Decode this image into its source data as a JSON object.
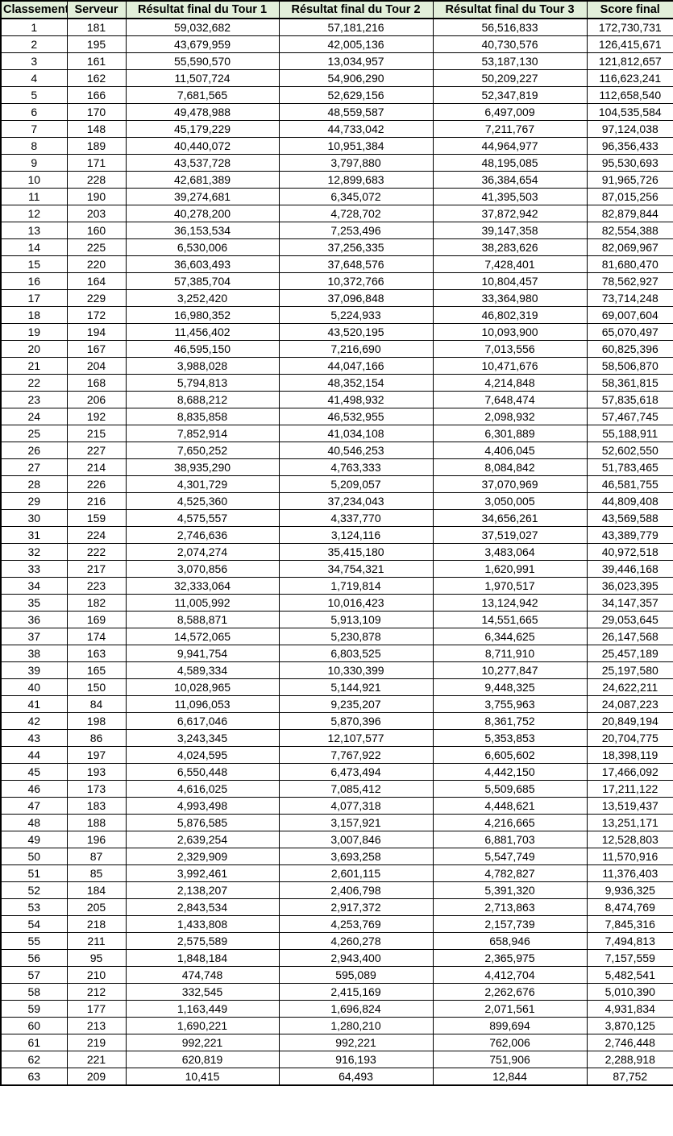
{
  "colors": {
    "header_bg": "#e2efda",
    "border": "#000000",
    "text": "#000000",
    "row_bg": "#ffffff"
  },
  "table": {
    "columns": [
      "Classement",
      "Serveur",
      "Résultat final du Tour 1",
      "Résultat final du Tour 2",
      "Résultat final du Tour 3",
      "Score final"
    ],
    "rows": [
      [
        "1",
        "181",
        "59,032,682",
        "57,181,216",
        "56,516,833",
        "172,730,731"
      ],
      [
        "2",
        "195",
        "43,679,959",
        "42,005,136",
        "40,730,576",
        "126,415,671"
      ],
      [
        "3",
        "161",
        "55,590,570",
        "13,034,957",
        "53,187,130",
        "121,812,657"
      ],
      [
        "4",
        "162",
        "11,507,724",
        "54,906,290",
        "50,209,227",
        "116,623,241"
      ],
      [
        "5",
        "166",
        "7,681,565",
        "52,629,156",
        "52,347,819",
        "112,658,540"
      ],
      [
        "6",
        "170",
        "49,478,988",
        "48,559,587",
        "6,497,009",
        "104,535,584"
      ],
      [
        "7",
        "148",
        "45,179,229",
        "44,733,042",
        "7,211,767",
        "97,124,038"
      ],
      [
        "8",
        "189",
        "40,440,072",
        "10,951,384",
        "44,964,977",
        "96,356,433"
      ],
      [
        "9",
        "171",
        "43,537,728",
        "3,797,880",
        "48,195,085",
        "95,530,693"
      ],
      [
        "10",
        "228",
        "42,681,389",
        "12,899,683",
        "36,384,654",
        "91,965,726"
      ],
      [
        "11",
        "190",
        "39,274,681",
        "6,345,072",
        "41,395,503",
        "87,015,256"
      ],
      [
        "12",
        "203",
        "40,278,200",
        "4,728,702",
        "37,872,942",
        "82,879,844"
      ],
      [
        "13",
        "160",
        "36,153,534",
        "7,253,496",
        "39,147,358",
        "82,554,388"
      ],
      [
        "14",
        "225",
        "6,530,006",
        "37,256,335",
        "38,283,626",
        "82,069,967"
      ],
      [
        "15",
        "220",
        "36,603,493",
        "37,648,576",
        "7,428,401",
        "81,680,470"
      ],
      [
        "16",
        "164",
        "57,385,704",
        "10,372,766",
        "10,804,457",
        "78,562,927"
      ],
      [
        "17",
        "229",
        "3,252,420",
        "37,096,848",
        "33,364,980",
        "73,714,248"
      ],
      [
        "18",
        "172",
        "16,980,352",
        "5,224,933",
        "46,802,319",
        "69,007,604"
      ],
      [
        "19",
        "194",
        "11,456,402",
        "43,520,195",
        "10,093,900",
        "65,070,497"
      ],
      [
        "20",
        "167",
        "46,595,150",
        "7,216,690",
        "7,013,556",
        "60,825,396"
      ],
      [
        "21",
        "204",
        "3,988,028",
        "44,047,166",
        "10,471,676",
        "58,506,870"
      ],
      [
        "22",
        "168",
        "5,794,813",
        "48,352,154",
        "4,214,848",
        "58,361,815"
      ],
      [
        "23",
        "206",
        "8,688,212",
        "41,498,932",
        "7,648,474",
        "57,835,618"
      ],
      [
        "24",
        "192",
        "8,835,858",
        "46,532,955",
        "2,098,932",
        "57,467,745"
      ],
      [
        "25",
        "215",
        "7,852,914",
        "41,034,108",
        "6,301,889",
        "55,188,911"
      ],
      [
        "26",
        "227",
        "7,650,252",
        "40,546,253",
        "4,406,045",
        "52,602,550"
      ],
      [
        "27",
        "214",
        "38,935,290",
        "4,763,333",
        "8,084,842",
        "51,783,465"
      ],
      [
        "28",
        "226",
        "4,301,729",
        "5,209,057",
        "37,070,969",
        "46,581,755"
      ],
      [
        "29",
        "216",
        "4,525,360",
        "37,234,043",
        "3,050,005",
        "44,809,408"
      ],
      [
        "30",
        "159",
        "4,575,557",
        "4,337,770",
        "34,656,261",
        "43,569,588"
      ],
      [
        "31",
        "224",
        "2,746,636",
        "3,124,116",
        "37,519,027",
        "43,389,779"
      ],
      [
        "32",
        "222",
        "2,074,274",
        "35,415,180",
        "3,483,064",
        "40,972,518"
      ],
      [
        "33",
        "217",
        "3,070,856",
        "34,754,321",
        "1,620,991",
        "39,446,168"
      ],
      [
        "34",
        "223",
        "32,333,064",
        "1,719,814",
        "1,970,517",
        "36,023,395"
      ],
      [
        "35",
        "182",
        "11,005,992",
        "10,016,423",
        "13,124,942",
        "34,147,357"
      ],
      [
        "36",
        "169",
        "8,588,871",
        "5,913,109",
        "14,551,665",
        "29,053,645"
      ],
      [
        "37",
        "174",
        "14,572,065",
        "5,230,878",
        "6,344,625",
        "26,147,568"
      ],
      [
        "38",
        "163",
        "9,941,754",
        "6,803,525",
        "8,711,910",
        "25,457,189"
      ],
      [
        "39",
        "165",
        "4,589,334",
        "10,330,399",
        "10,277,847",
        "25,197,580"
      ],
      [
        "40",
        "150",
        "10,028,965",
        "5,144,921",
        "9,448,325",
        "24,622,211"
      ],
      [
        "41",
        "84",
        "11,096,053",
        "9,235,207",
        "3,755,963",
        "24,087,223"
      ],
      [
        "42",
        "198",
        "6,617,046",
        "5,870,396",
        "8,361,752",
        "20,849,194"
      ],
      [
        "43",
        "86",
        "3,243,345",
        "12,107,577",
        "5,353,853",
        "20,704,775"
      ],
      [
        "44",
        "197",
        "4,024,595",
        "7,767,922",
        "6,605,602",
        "18,398,119"
      ],
      [
        "45",
        "193",
        "6,550,448",
        "6,473,494",
        "4,442,150",
        "17,466,092"
      ],
      [
        "46",
        "173",
        "4,616,025",
        "7,085,412",
        "5,509,685",
        "17,211,122"
      ],
      [
        "47",
        "183",
        "4,993,498",
        "4,077,318",
        "4,448,621",
        "13,519,437"
      ],
      [
        "48",
        "188",
        "5,876,585",
        "3,157,921",
        "4,216,665",
        "13,251,171"
      ],
      [
        "49",
        "196",
        "2,639,254",
        "3,007,846",
        "6,881,703",
        "12,528,803"
      ],
      [
        "50",
        "87",
        "2,329,909",
        "3,693,258",
        "5,547,749",
        "11,570,916"
      ],
      [
        "51",
        "85",
        "3,992,461",
        "2,601,115",
        "4,782,827",
        "11,376,403"
      ],
      [
        "52",
        "184",
        "2,138,207",
        "2,406,798",
        "5,391,320",
        "9,936,325"
      ],
      [
        "53",
        "205",
        "2,843,534",
        "2,917,372",
        "2,713,863",
        "8,474,769"
      ],
      [
        "54",
        "218",
        "1,433,808",
        "4,253,769",
        "2,157,739",
        "7,845,316"
      ],
      [
        "55",
        "211",
        "2,575,589",
        "4,260,278",
        "658,946",
        "7,494,813"
      ],
      [
        "56",
        "95",
        "1,848,184",
        "2,943,400",
        "2,365,975",
        "7,157,559"
      ],
      [
        "57",
        "210",
        "474,748",
        "595,089",
        "4,412,704",
        "5,482,541"
      ],
      [
        "58",
        "212",
        "332,545",
        "2,415,169",
        "2,262,676",
        "5,010,390"
      ],
      [
        "59",
        "177",
        "1,163,449",
        "1,696,824",
        "2,071,561",
        "4,931,834"
      ],
      [
        "60",
        "213",
        "1,690,221",
        "1,280,210",
        "899,694",
        "3,870,125"
      ],
      [
        "61",
        "219",
        "992,221",
        "992,221",
        "762,006",
        "2,746,448"
      ],
      [
        "62",
        "221",
        "620,819",
        "916,193",
        "751,906",
        "2,288,918"
      ],
      [
        "63",
        "209",
        "10,415",
        "64,493",
        "12,844",
        "87,752"
      ]
    ]
  }
}
